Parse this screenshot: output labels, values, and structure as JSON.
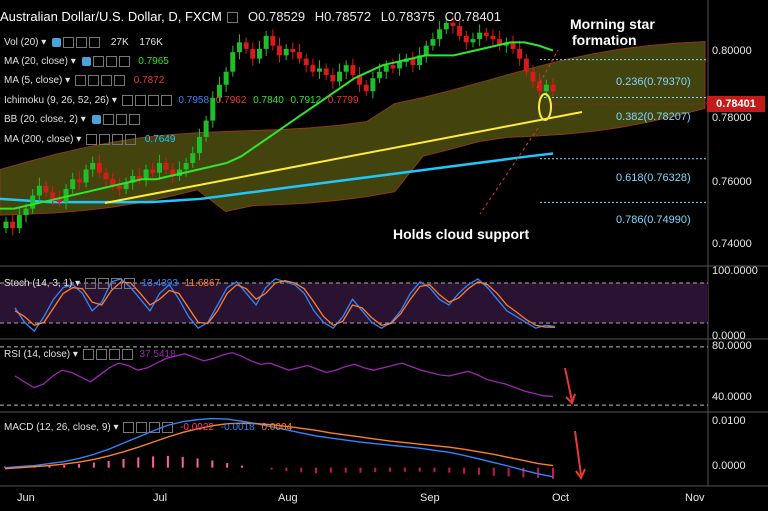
{
  "header": {
    "title": "Australian Dollar/U.S. Dollar, D, FXCM",
    "ohlc": {
      "o": "O0.78529",
      "h": "H0.78572",
      "l": "L0.78375",
      "c": "C0.78401"
    }
  },
  "indicators": {
    "vol": {
      "label": "Vol (20)",
      "v1": "27K",
      "v2": "176K"
    },
    "ma20": {
      "label": "MA (20, close)",
      "value": "0.7965"
    },
    "ma5": {
      "label": "MA (5, close)",
      "value": "0.7872"
    },
    "ichimoku": {
      "label": "Ichimoku (9, 26, 52, 26)",
      "v1": "0.7958",
      "v2": "0.7962",
      "v3": "0.7840",
      "v4": "0.7912",
      "v5": "0.7799"
    },
    "bb": {
      "label": "BB (20, close, 2)"
    },
    "ma200": {
      "label": "MA (200, close)",
      "value": "0.7649"
    },
    "stoch": {
      "label": "Stoch (14, 3, 1)",
      "k": "13.4393",
      "d": "11.6867"
    },
    "rsi": {
      "label": "RSI (14, close)",
      "value": "37.5418"
    },
    "macd": {
      "label": "MACD (12, 26, close, 9)",
      "v1": "-0.0022",
      "v2": "-0.0018",
      "v3": "0.0004"
    }
  },
  "annotations": {
    "morning_star_line1": "Morning star",
    "morning_star_line2": "formation",
    "holds_cloud": "Holds cloud support"
  },
  "current_price": "0.78401",
  "colors": {
    "candle_up": "#1fbf2c",
    "candle_down": "#d91a1a",
    "ma20": "#2ee62e",
    "ma5": "#c0392b",
    "ma200": "#1ec8ff",
    "cloud": "#5a5a12",
    "trendline": "#ffeb3b",
    "price_tag": "#c51a1a",
    "fib_text": "#7fd8ff",
    "stoch_bg": "#2a1233",
    "rsi_line": "#9c27b0",
    "macd_line": "#2e86ff",
    "signal_line": "#ff7f27"
  },
  "chart_data": [
    {
      "type": "candlestick",
      "pane": "price",
      "ylim": [
        0.731,
        0.812
      ],
      "y_ticks": [
        "0.80000",
        "0.78000",
        "0.76000",
        "0.74000"
      ],
      "y_tick_values": [
        0.8,
        0.78,
        0.76,
        0.74
      ],
      "x_ticks": [
        "Jun",
        "Jul",
        "Aug",
        "Sep",
        "Oct",
        "Nov"
      ],
      "close_series": [
        0.744,
        0.742,
        0.746,
        0.748,
        0.752,
        0.755,
        0.753,
        0.751,
        0.75,
        0.754,
        0.757,
        0.756,
        0.76,
        0.762,
        0.759,
        0.757,
        0.755,
        0.754,
        0.756,
        0.758,
        0.757,
        0.76,
        0.759,
        0.762,
        0.76,
        0.758,
        0.76,
        0.762,
        0.765,
        0.77,
        0.775,
        0.782,
        0.786,
        0.79,
        0.796,
        0.799,
        0.797,
        0.794,
        0.797,
        0.801,
        0.798,
        0.795,
        0.797,
        0.796,
        0.794,
        0.792,
        0.79,
        0.791,
        0.789,
        0.787,
        0.79,
        0.792,
        0.789,
        0.786,
        0.784,
        0.788,
        0.79,
        0.792,
        0.791,
        0.793,
        0.794,
        0.792,
        0.795,
        0.798,
        0.8,
        0.803,
        0.805,
        0.804,
        0.801,
        0.799,
        0.8,
        0.802,
        0.801,
        0.8,
        0.798,
        0.799,
        0.797,
        0.794,
        0.79,
        0.787,
        0.784,
        0.786,
        0.784
      ],
      "series": [
        {
          "name": "MA (20, close)",
          "values": [
            0.748,
            0.748,
            0.749,
            0.75,
            0.751,
            0.752,
            0.753,
            0.754,
            0.755,
            0.756,
            0.757,
            0.757,
            0.758,
            0.759,
            0.76,
            0.761,
            0.762,
            0.764,
            0.767,
            0.77,
            0.773,
            0.776,
            0.779,
            0.782,
            0.785,
            0.788,
            0.79,
            0.792,
            0.793,
            0.794,
            0.795,
            0.795,
            0.795,
            0.796,
            0.797,
            0.798,
            0.799,
            0.799,
            0.798,
            0.7965
          ]
        },
        {
          "name": "MA (200, close)",
          "values": [
            0.751,
            0.7505,
            0.75,
            0.75,
            0.75,
            0.75,
            0.75,
            0.7505,
            0.751,
            0.752,
            0.753,
            0.754,
            0.755,
            0.756,
            0.757,
            0.758,
            0.759,
            0.76,
            0.761,
            0.762,
            0.763,
            0.764,
            0.7649
          ]
        }
      ],
      "fibonacci": [
        {
          "label": "0.236(0.79370)",
          "value": 0.7937
        },
        {
          "label": "0.382(0.78207)",
          "value": 0.78207
        },
        {
          "label": "0.618(0.76328)",
          "value": 0.76328
        },
        {
          "label": "0.786(0.74990)",
          "value": 0.7499
        }
      ]
    },
    {
      "type": "line",
      "pane": "stochastic",
      "ylim": [
        0,
        100
      ],
      "y_ticks": [
        "100.0000",
        "0.0000"
      ],
      "series": [
        {
          "name": "%K",
          "values": [
            45,
            20,
            5,
            30,
            60,
            80,
            85,
            70,
            40,
            55,
            90,
            95,
            80,
            60,
            40,
            70,
            85,
            60,
            30,
            10,
            20,
            50,
            80,
            90,
            70,
            50,
            80,
            95,
            90,
            85,
            70,
            40,
            20,
            10,
            30,
            60,
            40,
            20,
            10,
            20,
            40,
            70,
            90,
            80,
            60,
            50,
            70,
            85,
            95,
            80,
            60,
            40,
            30,
            20,
            10,
            15,
            13
          ]
        },
        {
          "name": "%D",
          "values": [
            40,
            30,
            15,
            20,
            45,
            70,
            80,
            78,
            55,
            50,
            75,
            90,
            88,
            70,
            50,
            60,
            75,
            70,
            45,
            20,
            18,
            40,
            70,
            85,
            78,
            60,
            70,
            88,
            92,
            88,
            78,
            55,
            30,
            15,
            22,
            50,
            45,
            28,
            15,
            18,
            35,
            60,
            82,
            85,
            68,
            55,
            62,
            78,
            90,
            85,
            70,
            50,
            38,
            25,
            15,
            12,
            11.7
          ]
        }
      ]
    },
    {
      "type": "line",
      "pane": "rsi",
      "ylim": [
        25,
        85
      ],
      "y_ticks": [
        "80.0000",
        "40.0000"
      ],
      "series": [
        {
          "name": "RSI (14, close)",
          "values": [
            55,
            50,
            45,
            48,
            55,
            60,
            58,
            54,
            50,
            56,
            62,
            66,
            64,
            60,
            62,
            66,
            70,
            72,
            74,
            71,
            68,
            70,
            73,
            75,
            72,
            68,
            65,
            66,
            63,
            60,
            62,
            64,
            61,
            58,
            60,
            63,
            65,
            62,
            60,
            62,
            64,
            66,
            63,
            60,
            58,
            56,
            55,
            57,
            59,
            56,
            52,
            50,
            48,
            45,
            42,
            40,
            38,
            37.5
          ]
        }
      ]
    },
    {
      "type": "line",
      "pane": "macd",
      "ylim": [
        -0.0032,
        0.0105
      ],
      "y_ticks": [
        "0.0100",
        "0.0000"
      ],
      "series": [
        {
          "name": "MACD",
          "values": [
            0.0,
            0.0002,
            0.0004,
            0.0008,
            0.0012,
            0.0018,
            0.0026,
            0.0036,
            0.0048,
            0.006,
            0.0072,
            0.0083,
            0.009,
            0.0094,
            0.0096,
            0.0095,
            0.0091,
            0.0086,
            0.008,
            0.0074,
            0.0068,
            0.0062,
            0.0058,
            0.0054,
            0.005,
            0.0047,
            0.0044,
            0.0041,
            0.0038,
            0.0034,
            0.003,
            0.0024,
            0.0017,
            0.001,
            0.0003,
            -0.0005,
            -0.0012,
            -0.0018
          ]
        },
        {
          "name": "Signal",
          "values": [
            -0.0002,
            0.0,
            0.0002,
            0.0004,
            0.0007,
            0.0011,
            0.0016,
            0.0023,
            0.0031,
            0.004,
            0.005,
            0.006,
            0.0069,
            0.0076,
            0.0082,
            0.0086,
            0.0087,
            0.0086,
            0.0084,
            0.0081,
            0.0077,
            0.0073,
            0.0068,
            0.0064,
            0.006,
            0.0056,
            0.0052,
            0.0049,
            0.0046,
            0.0043,
            0.004,
            0.0036,
            0.0031,
            0.0026,
            0.002,
            0.0014,
            0.0008,
            0.0004
          ]
        }
      ]
    }
  ]
}
